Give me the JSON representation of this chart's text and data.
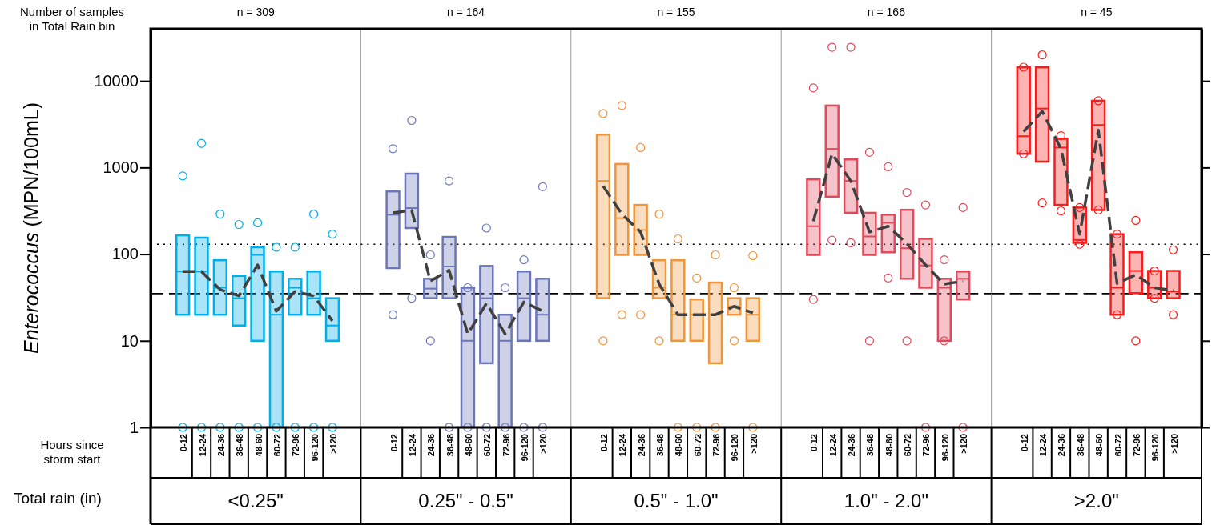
{
  "chart_data": [
    {
      "type": "box",
      "title": "n = 309",
      "xlabel": "<0.25\"",
      "ylabel": "Enterococcus (MPN/100mL)",
      "annotations": [
        "Number of samples in Total Rain bin",
        "Hours since storm start",
        "Total rain (in)"
      ],
      "categories": [
        "0-12",
        "12-24",
        "24-36",
        "36-48",
        "48-60",
        "60-72",
        "72-96",
        "96-120",
        ">120"
      ],
      "log": true,
      "ylim": [
        1,
        40000
      ],
      "yticks": [
        1,
        10,
        100,
        1000,
        10000
      ],
      "ref_lines": [
        {
          "axis": "y",
          "value": 130,
          "color": "#000000",
          "line_style": "dotted"
        },
        {
          "axis": "y",
          "value": 35,
          "color": "#000000",
          "line_style": "dashed"
        }
      ],
      "series": [
        {
          "type": "box",
          "color": "#00aee8",
          "boxes": [
            {
              "low": 20,
              "q1": 20,
              "median": 63,
              "q3": 165,
              "high": 165,
              "outliers": [
                800,
                1
              ]
            },
            {
              "low": 20,
              "q1": 20,
              "median": 63,
              "q3": 155,
              "high": 155,
              "outliers": [
                1900,
                1
              ]
            },
            {
              "low": 20,
              "q1": 20,
              "median": 41,
              "q3": 85,
              "high": 85,
              "outliers": [
                290,
                1
              ]
            },
            {
              "low": 15,
              "q1": 15,
              "median": 31,
              "q3": 56,
              "high": 56,
              "outliers": [
                220,
                1
              ]
            },
            {
              "low": 10,
              "q1": 10,
              "median": 98,
              "q3": 120,
              "high": 120,
              "outliers": [
                230,
                1
              ]
            },
            {
              "low": 1,
              "q1": 1,
              "median": 20,
              "q3": 63,
              "high": 63,
              "outliers": [
                120,
                1
              ]
            },
            {
              "low": 20,
              "q1": 20,
              "median": 41,
              "q3": 52,
              "high": 52,
              "outliers": [
                120,
                1
              ]
            },
            {
              "low": 20,
              "q1": 20,
              "median": 31,
              "q3": 63,
              "high": 63,
              "outliers": [
                290,
                1
              ]
            },
            {
              "low": 10,
              "q1": 10,
              "median": 15,
              "q3": 31,
              "high": 31,
              "outliers": [
                170,
                1
              ]
            }
          ]
        },
        {
          "type": "line",
          "color": "#404040",
          "line_style": "dashed",
          "values": [
            63,
            63,
            39,
            33,
            75,
            22,
            37,
            33,
            17
          ]
        }
      ]
    },
    {
      "type": "box",
      "title": "n = 164",
      "xlabel": "0.25\" - 0.5\"",
      "categories": [
        "0-12",
        "12-24",
        "24-36",
        "36-48",
        "48-60",
        "60-72",
        "72-96",
        "96-120",
        ">120"
      ],
      "log": true,
      "ylim": [
        1,
        40000
      ],
      "tick_labels": "x",
      "ref_lines": [
        {
          "axis": "y",
          "value": 130,
          "color": "#000000",
          "line_style": "dotted"
        },
        {
          "axis": "y",
          "value": 35,
          "color": "#000000",
          "line_style": "dashed"
        }
      ],
      "series": [
        {
          "type": "box",
          "color": "#6b76b8",
          "boxes": [
            {
              "low": 69,
              "q1": 69,
              "median": 285,
              "q3": 530,
              "high": 530,
              "outliers": [
                1650,
                20
              ]
            },
            {
              "low": 200,
              "q1": 200,
              "median": 340,
              "q3": 850,
              "high": 850,
              "outliers": [
                3500,
                31
              ]
            },
            {
              "low": 31,
              "q1": 31,
              "median": 40,
              "q3": 52,
              "high": 52,
              "outliers": [
                98,
                10
              ]
            },
            {
              "low": 31,
              "q1": 31,
              "median": 72,
              "q3": 158,
              "high": 158,
              "outliers": [
                700,
                1
              ]
            },
            {
              "low": 1,
              "q1": 1,
              "median": 10,
              "q3": 41,
              "high": 41,
              "outliers": [
                41,
                1
              ]
            },
            {
              "low": 5.5,
              "q1": 5.5,
              "median": 31,
              "q3": 73,
              "high": 73,
              "outliers": [
                200,
                1
              ]
            },
            {
              "low": 1,
              "q1": 1,
              "median": 10,
              "q3": 20,
              "high": 20,
              "outliers": [
                41,
                1
              ]
            },
            {
              "low": 10,
              "q1": 10,
              "median": 31,
              "q3": 63,
              "high": 63,
              "outliers": [
                86,
                1
              ]
            },
            {
              "low": 10,
              "q1": 10,
              "median": 20,
              "q3": 52,
              "high": 52,
              "outliers": [
                600,
                1
              ]
            }
          ]
        },
        {
          "type": "line",
          "color": "#404040",
          "line_style": "dashed",
          "values": [
            300,
            320,
            49,
            65,
            12,
            27,
            12,
            28,
            22
          ]
        }
      ]
    },
    {
      "type": "box",
      "title": "n = 155",
      "xlabel": "0.5\" - 1.0\"",
      "categories": [
        "0-12",
        "12-24",
        "24-36",
        "36-48",
        "48-60",
        "60-72",
        "72-96",
        "96-120",
        ">120"
      ],
      "log": true,
      "ylim": [
        1,
        40000
      ],
      "tick_labels": "x",
      "ref_lines": [
        {
          "axis": "y",
          "value": 130,
          "color": "#000000",
          "line_style": "dotted"
        },
        {
          "axis": "y",
          "value": 35,
          "color": "#000000",
          "line_style": "dashed"
        }
      ],
      "series": [
        {
          "type": "box",
          "color": "#f0953a",
          "boxes": [
            {
              "low": 31,
              "q1": 31,
              "median": 700,
              "q3": 2400,
              "high": 2400,
              "outliers": [
                4200,
                10
              ]
            },
            {
              "low": 98,
              "q1": 98,
              "median": 260,
              "q3": 1100,
              "high": 1100,
              "outliers": [
                5200,
                20
              ]
            },
            {
              "low": 98,
              "q1": 98,
              "median": 190,
              "q3": 370,
              "high": 370,
              "outliers": [
                1700,
                20
              ]
            },
            {
              "low": 31,
              "q1": 31,
              "median": 41,
              "q3": 85,
              "high": 85,
              "outliers": [
                290,
                10
              ]
            },
            {
              "low": 10,
              "q1": 10,
              "median": 20,
              "q3": 85,
              "high": 85,
              "outliers": [
                150,
                1
              ]
            },
            {
              "low": 10,
              "q1": 10,
              "median": 20,
              "q3": 30,
              "high": 30,
              "outliers": [
                53,
                1
              ]
            },
            {
              "low": 5.5,
              "q1": 5.5,
              "median": 20,
              "q3": 47,
              "high": 47,
              "outliers": [
                98,
                1
              ]
            },
            {
              "low": 20,
              "q1": 20,
              "median": 25,
              "q3": 31,
              "high": 31,
              "outliers": [
                41,
                10
              ]
            },
            {
              "low": 10,
              "q1": 10,
              "median": 20,
              "q3": 31,
              "high": 31,
              "outliers": [
                96,
                1
              ]
            }
          ]
        },
        {
          "type": "line",
          "color": "#404040",
          "line_style": "dashed",
          "values": [
            610,
            290,
            180,
            45,
            20,
            20,
            20,
            25,
            21
          ]
        }
      ]
    },
    {
      "type": "box",
      "title": "n = 166",
      "xlabel": "1.0\" - 2.0\"",
      "categories": [
        "0-12",
        "12-24",
        "24-36",
        "36-48",
        "48-60",
        "60-72",
        "72-96",
        "96-120",
        ">120"
      ],
      "log": true,
      "ylim": [
        1,
        40000
      ],
      "tick_labels": "x",
      "ref_lines": [
        {
          "axis": "y",
          "value": 130,
          "color": "#000000",
          "line_style": "dotted"
        },
        {
          "axis": "y",
          "value": 35,
          "color": "#000000",
          "line_style": "dashed"
        }
      ],
      "series": [
        {
          "type": "box",
          "color": "#e04a5a",
          "boxes": [
            {
              "low": 98,
              "q1": 98,
              "median": 210,
              "q3": 730,
              "high": 730,
              "outliers": [
                8300,
                30
              ]
            },
            {
              "low": 460,
              "q1": 460,
              "median": 1640,
              "q3": 5200,
              "high": 5200,
              "outliers": [
                24500,
                145
              ]
            },
            {
              "low": 300,
              "q1": 300,
              "median": 700,
              "q3": 1240,
              "high": 1240,
              "outliers": [
                24500,
                135
              ]
            },
            {
              "low": 98,
              "q1": 98,
              "median": 160,
              "q3": 300,
              "high": 300,
              "outliers": [
                1500,
                10
              ]
            },
            {
              "low": 105,
              "q1": 105,
              "median": 230,
              "q3": 285,
              "high": 285,
              "outliers": [
                1020,
                53
              ]
            },
            {
              "low": 52,
              "q1": 52,
              "median": 117,
              "q3": 325,
              "high": 325,
              "outliers": [
                515,
                10
              ]
            },
            {
              "low": 41,
              "q1": 41,
              "median": 74,
              "q3": 150,
              "high": 150,
              "outliers": [
                370,
                1
              ]
            },
            {
              "low": 10,
              "q1": 10,
              "median": 41,
              "q3": 52,
              "high": 52,
              "outliers": [
                86,
                10
              ]
            },
            {
              "low": 30,
              "q1": 30,
              "median": 52,
              "q3": 63,
              "high": 63,
              "outliers": [
                345,
                1
              ]
            }
          ]
        },
        {
          "type": "line",
          "color": "#404040",
          "line_style": "dashed",
          "values": [
            240,
            1440,
            700,
            180,
            210,
            132,
            75,
            45,
            49
          ]
        }
      ]
    },
    {
      "type": "box",
      "title": "n = 45",
      "xlabel": ">2.0\"",
      "categories": [
        "0-12",
        "12-24",
        "24-36",
        "36-48",
        "48-60",
        "60-72",
        "72-96",
        "96-120",
        ">120"
      ],
      "log": true,
      "ylim": [
        1,
        40000
      ],
      "tick_labels": "x",
      "yticks": [
        {
          "value": 1,
          "label": null
        },
        {
          "value": 10,
          "label": null
        },
        {
          "value": 100,
          "label": null
        },
        {
          "value": 1000,
          "label": null
        },
        {
          "value": 10000,
          "label": null
        }
      ],
      "ref_lines": [
        {
          "axis": "y",
          "value": 130,
          "color": "#000000",
          "line_style": "dotted"
        },
        {
          "axis": "y",
          "value": 35,
          "color": "#000000",
          "line_style": "dashed"
        }
      ],
      "series": [
        {
          "type": "box",
          "color": "#ff1a1a",
          "boxes": [
            {
              "low": 1440,
              "q1": 1440,
              "median": 2300,
              "q3": 14400,
              "high": 14400,
              "outliers": [
                14400,
                1440
              ]
            },
            {
              "low": 1170,
              "q1": 1170,
              "median": 4800,
              "q3": 14400,
              "high": 14400,
              "outliers": [
                20000,
                390
              ]
            },
            {
              "low": 370,
              "q1": 370,
              "median": 1700,
              "q3": 2150,
              "high": 2150,
              "outliers": [
                2330,
                316
              ]
            },
            {
              "low": 135,
              "q1": 135,
              "median": 146,
              "q3": 345,
              "high": 345,
              "outliers": [
                345,
                130
              ]
            },
            {
              "low": 323,
              "q1": 323,
              "median": 3100,
              "q3": 5900,
              "high": 5900,
              "outliers": [
                5900,
                323
              ]
            },
            {
              "low": 20,
              "q1": 20,
              "median": 41,
              "q3": 170,
              "high": 170,
              "outliers": [
                170,
                20
              ]
            },
            {
              "low": 35.5,
              "q1": 35.5,
              "median": 64,
              "q3": 105,
              "high": 105,
              "outliers": [
                245,
                10
              ]
            },
            {
              "low": 31,
              "q1": 31,
              "median": 41,
              "q3": 64,
              "high": 64,
              "outliers": [
                64,
                31
              ]
            },
            {
              "low": 31,
              "q1": 31,
              "median": 37,
              "q3": 64,
              "high": 64,
              "outliers": [
                112,
                20
              ]
            }
          ]
        },
        {
          "type": "line",
          "color": "#404040",
          "line_style": "dashed",
          "values": [
            2600,
            4450,
            1650,
            170,
            2700,
            46,
            58,
            41,
            38
          ]
        }
      ]
    }
  ]
}
